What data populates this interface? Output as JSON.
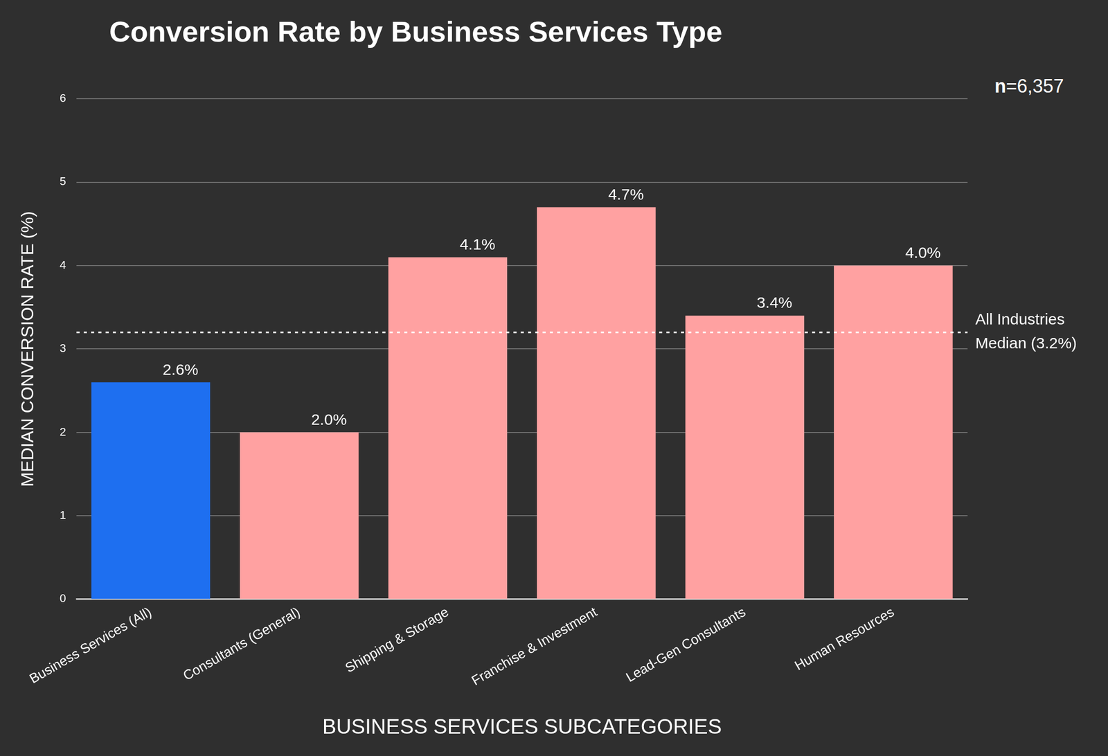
{
  "chart_data": {
    "type": "bar",
    "title": "Conversion Rate by Business Services Type",
    "annotations": [
      "n=6,357"
    ],
    "x_label": "BUSINESS SERVICES SUBCATEGORIES",
    "y_label": "MEDIAN CONVERSION RATE (%)",
    "categories": [
      "Business Services (All)",
      "Consultants (General)",
      "Shipping & Storage",
      "Franchise & Investment",
      "Lead-Gen Consultants",
      "Human Resources"
    ],
    "values": [
      2.6,
      2.0,
      4.1,
      4.7,
      3.4,
      4.0
    ],
    "value_labels": [
      "2.6%",
      "2.0%",
      "4.1%",
      "4.7%",
      "3.4%",
      "4.0%"
    ],
    "colors": [
      "#1e6ff0",
      "#ffa1a1",
      "#ffa1a1",
      "#ffa1a1",
      "#ffa1a1",
      "#ffa1a1"
    ],
    "ylim": [
      0,
      6
    ],
    "yticks": [
      0,
      1,
      2,
      3,
      4,
      5,
      6
    ],
    "grid": true,
    "data_labels": true,
    "reference_lines": [
      {
        "value": 3.2,
        "label": "All Industries Median (3.2%)"
      }
    ]
  }
}
